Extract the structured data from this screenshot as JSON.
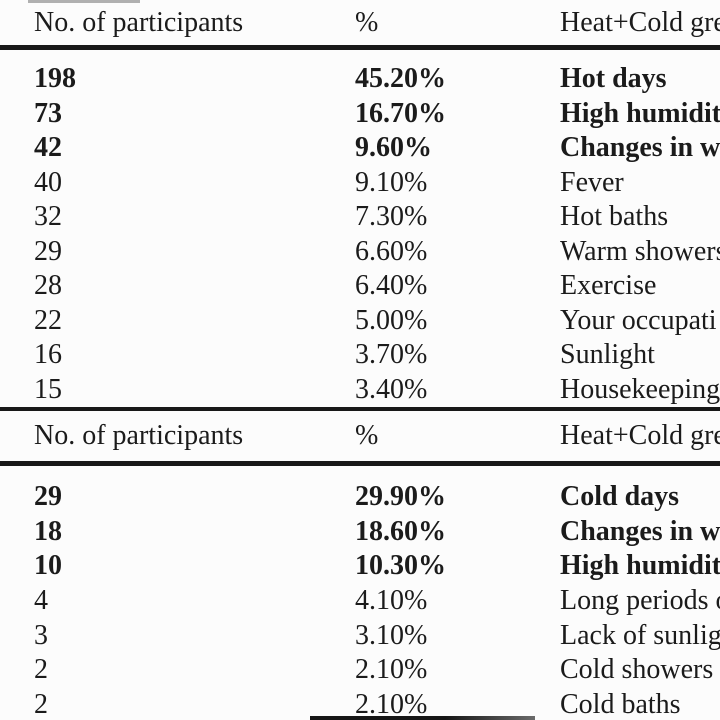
{
  "tables": [
    {
      "headers": {
        "participants": "No. of participants",
        "percent": "%",
        "trigger": "Heat+Cold gre"
      },
      "rows": [
        {
          "n": "198",
          "pct": "45.20%",
          "trigger": "Hot days"
        },
        {
          "n": "73",
          "pct": "16.70%",
          "trigger": "High humidit"
        },
        {
          "n": "42",
          "pct": "9.60%",
          "trigger": "Changes in w"
        },
        {
          "n": "40",
          "pct": "9.10%",
          "trigger": "Fever"
        },
        {
          "n": "32",
          "pct": "7.30%",
          "trigger": "Hot baths"
        },
        {
          "n": "29",
          "pct": "6.60%",
          "trigger": "Warm showers"
        },
        {
          "n": "28",
          "pct": "6.40%",
          "trigger": "Exercise"
        },
        {
          "n": "22",
          "pct": "5.00%",
          "trigger": "Your occupati"
        },
        {
          "n": "16",
          "pct": "3.70%",
          "trigger": "Sunlight"
        },
        {
          "n": "15",
          "pct": "3.40%",
          "trigger": "Housekeeping"
        }
      ]
    },
    {
      "headers": {
        "participants": "No. of participants",
        "percent": "%",
        "trigger": "Heat+Cold gre"
      },
      "rows": [
        {
          "n": "29",
          "pct": "29.90%",
          "trigger": "Cold days"
        },
        {
          "n": "18",
          "pct": "18.60%",
          "trigger": "Changes in w"
        },
        {
          "n": "10",
          "pct": "10.30%",
          "trigger": "High humidit"
        },
        {
          "n": "4",
          "pct": "4.10%",
          "trigger": "Long periods o"
        },
        {
          "n": "3",
          "pct": "3.10%",
          "trigger": "Lack of sunlig"
        },
        {
          "n": "2",
          "pct": "2.10%",
          "trigger": "Cold showers"
        },
        {
          "n": "2",
          "pct": "2.10%",
          "trigger": "Cold baths"
        }
      ]
    }
  ],
  "colors": {
    "background": "#fcfcfc",
    "text": "#1b1b1b",
    "rule": "#181818"
  }
}
